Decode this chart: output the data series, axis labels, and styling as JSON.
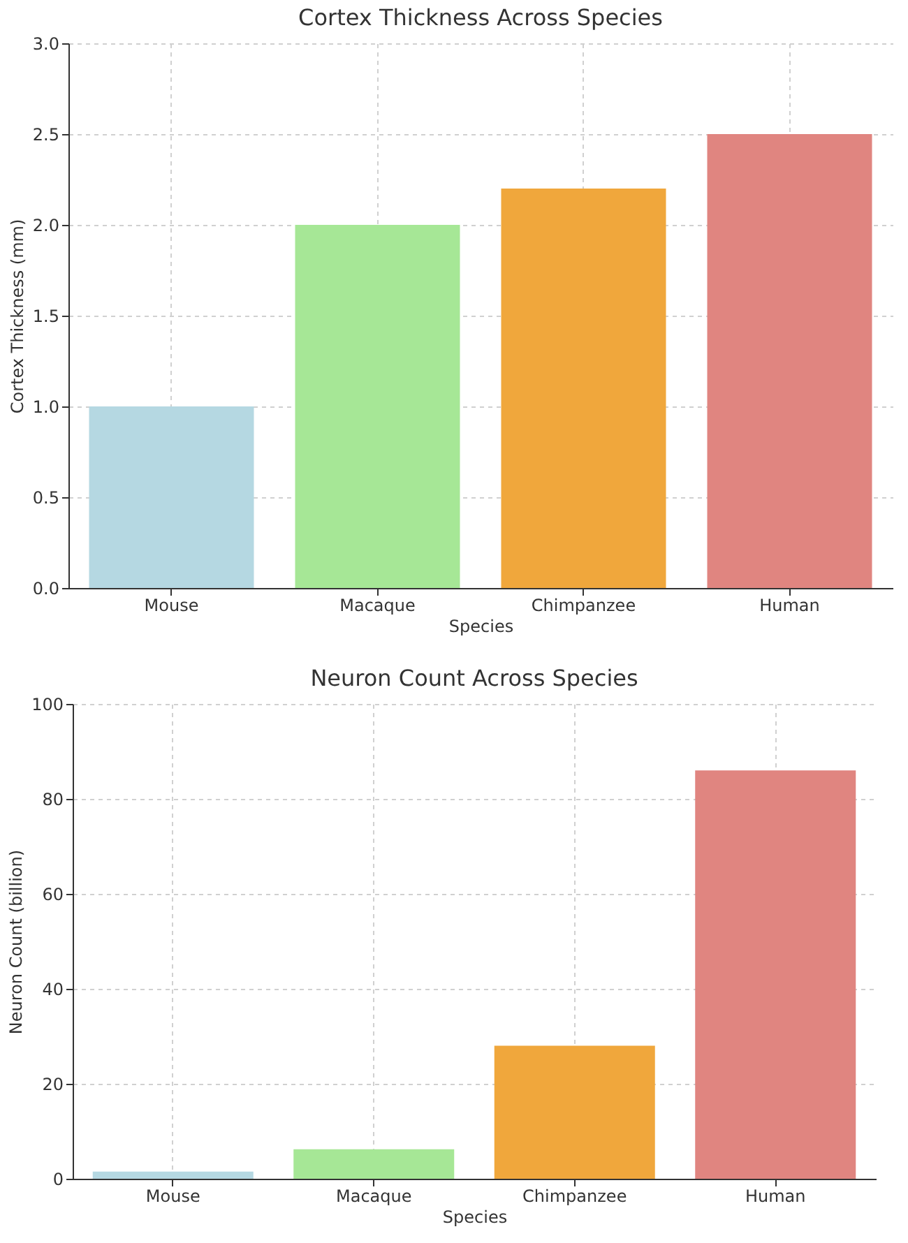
{
  "chart_data": [
    {
      "type": "bar",
      "title": "Cortex Thickness Across Species",
      "xlabel": "Species",
      "ylabel": "Cortex Thickness (mm)",
      "categories": [
        "Mouse",
        "Macaque",
        "Chimpanzee",
        "Human"
      ],
      "values": [
        1.0,
        2.0,
        2.2,
        2.5
      ],
      "colors": [
        "#b5d8e2",
        "#a6e796",
        "#f0a73c",
        "#e08580"
      ],
      "ylim": [
        0,
        3
      ],
      "yticks": [
        {
          "value": 0,
          "label": "0.0"
        },
        {
          "value": 0.5,
          "label": "0.5"
        },
        {
          "value": 1,
          "label": "1.0"
        },
        {
          "value": 1.5,
          "label": "1.5"
        },
        {
          "value": 2,
          "label": "2.0"
        },
        {
          "value": 2.5,
          "label": "2.5"
        },
        {
          "value": 3,
          "label": "3.0"
        }
      ],
      "grid": true
    },
    {
      "type": "bar",
      "title": "Neuron Count Across Species",
      "xlabel": "Species",
      "ylabel": "Neuron Count (billion)",
      "categories": [
        "Mouse",
        "Macaque",
        "Chimpanzee",
        "Human"
      ],
      "values": [
        1.5,
        6.2,
        28,
        86
      ],
      "colors": [
        "#b5d8e2",
        "#a6e796",
        "#f0a73c",
        "#e08580"
      ],
      "ylim": [
        0,
        100
      ],
      "yticks": [
        0,
        20,
        40,
        60,
        80,
        100
      ],
      "grid": true
    }
  ]
}
